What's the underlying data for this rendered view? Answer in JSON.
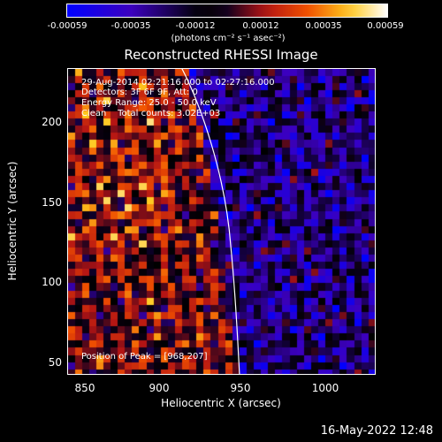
{
  "colorbar": {
    "ticks": [
      "-0.00059",
      "-0.00035",
      "-0.00012",
      "0.00012",
      "0.00035",
      "0.00059"
    ],
    "units": "(photons cm⁻² s⁻¹ asec⁻²)"
  },
  "title": "Reconstructed RHESSI Image",
  "info": {
    "time": "29-Aug-2014 02:21:16.000 to 02:27:16.000",
    "detectors": "Detectors: 3F 6F 9F, Att: 0",
    "energy": "Energy Range: 25.0 - 50.0 keV",
    "clean": "Clean    Total counts: 3.02E+03",
    "peak": "Position of Peak = [968,207]"
  },
  "axes": {
    "xlabel": "Heliocentric X (arcsec)",
    "ylabel": "Heliocentric Y (arcsec)",
    "xticks": [
      "850",
      "900",
      "950",
      "1000"
    ],
    "yticks": [
      "200",
      "150",
      "100",
      "50"
    ]
  },
  "timestamp": "16-May-2022 12:48",
  "colors": {
    "background": "#000000",
    "frame": "#ffffff",
    "limb": "#ffffff"
  },
  "icons": []
}
